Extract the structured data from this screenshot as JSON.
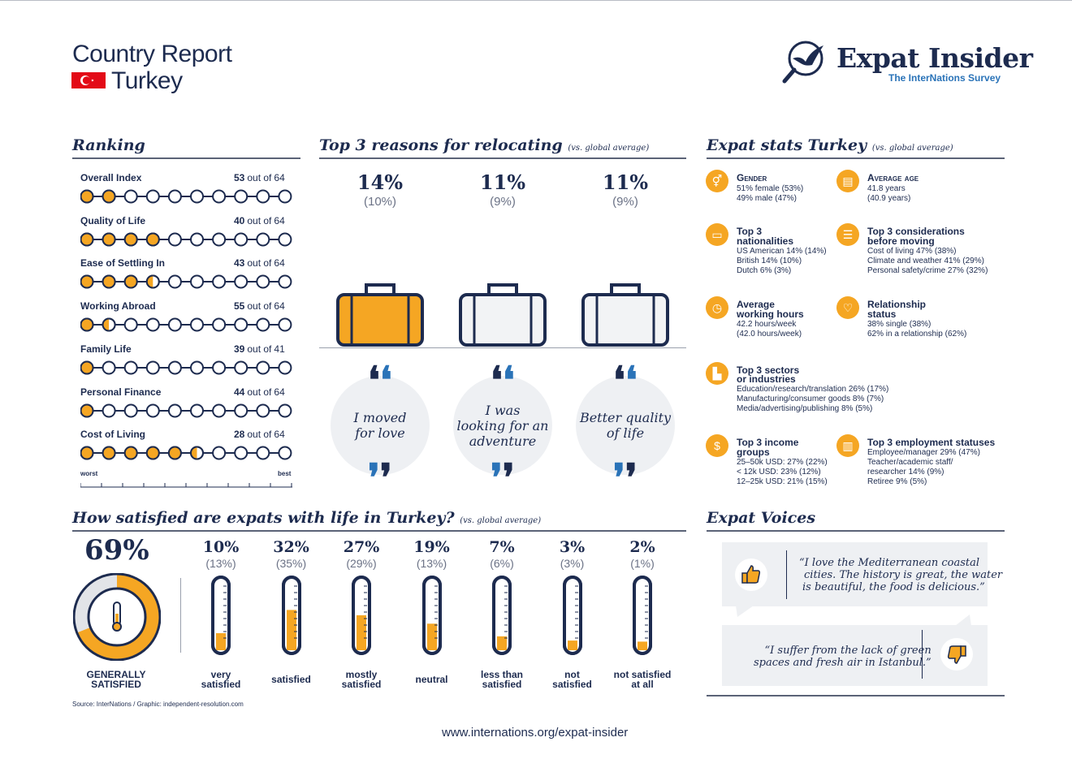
{
  "header": {
    "title": "Country Report",
    "country": "Turkey",
    "logo_name": "Expat Insider",
    "logo_sub": "The InterNations Survey"
  },
  "colors": {
    "accent": "#f5a623",
    "navy": "#1d2b4f",
    "blue": "#2a73b8",
    "flag": "#e30a17",
    "bubble": "#eef0f3"
  },
  "ranking": {
    "title": "Ranking",
    "worst": "worst",
    "best": "best",
    "out_of": "out of",
    "items": [
      {
        "label": "Overall Index",
        "rank": "53",
        "total": "64",
        "filled": 2
      },
      {
        "label": "Quality of Life",
        "rank": "40",
        "total": "64",
        "filled": 4
      },
      {
        "label": "Ease of Settling In",
        "rank": "43",
        "total": "64",
        "filled": 3.5
      },
      {
        "label": "Working Abroad",
        "rank": "55",
        "total": "64",
        "filled": 1.5
      },
      {
        "label": "Family Life",
        "rank": "39",
        "total": "41",
        "filled": 1
      },
      {
        "label": "Personal Finance",
        "rank": "44",
        "total": "64",
        "filled": 1
      },
      {
        "label": "Cost of Living",
        "rank": "28",
        "total": "64",
        "filled": 5.5
      }
    ]
  },
  "reasons": {
    "title": "Top 3 reasons for relocating",
    "note": "(vs. global average)",
    "items": [
      {
        "pct": "14%",
        "global": "(10%)",
        "text": "I moved for love",
        "line1": "I moved",
        "line2": "for love",
        "line3": "",
        "highlight": true
      },
      {
        "pct": "11%",
        "global": "(9%)",
        "text": "I was looking for an adventure",
        "line1": "I was",
        "line2": "looking for an",
        "line3": "adventure",
        "highlight": false
      },
      {
        "pct": "11%",
        "global": "(9%)",
        "text": "Better quality of life",
        "line1": "Better quality",
        "line2": "of life",
        "line3": "",
        "highlight": false
      }
    ]
  },
  "stats": {
    "title": "Expat stats Turkey",
    "note": "(vs. global average)",
    "gender": {
      "head": "Gender",
      "l1": "51% female (53%)",
      "l2": "49% male (47%)"
    },
    "age": {
      "head": "Average age",
      "l1": "41.8 years",
      "l2": "(40.9 years)"
    },
    "nationalities": {
      "head1": "Top 3",
      "head2": "nationalities",
      "l1": "US American 14% (14%)",
      "l2": "British 14% (10%)",
      "l3": "Dutch 6% (3%)"
    },
    "considerations": {
      "head1": "Top 3 considerations",
      "head2": "before moving",
      "l1": "Cost of living 47% (38%)",
      "l2": "Climate and weather 41% (29%)",
      "l3": "Personal safety/crime 27% (32%)"
    },
    "hours": {
      "head1": "Average",
      "head2": "working hours",
      "l1": "42.2 hours/week",
      "l2": "(42.0 hours/week)"
    },
    "relationship": {
      "head1": "Relationship",
      "head2": "status",
      "l1": "38% single (38%)",
      "l2": "62% in a relationship (62%)"
    },
    "sectors": {
      "head1": "Top 3 sectors",
      "head2": "or industries",
      "l1": "Education/research/translation 26% (17%)",
      "l2": "Manufacturing/consumer goods 8% (7%)",
      "l3": "Media/advertising/publishing 8% (5%)"
    },
    "income": {
      "head1": "Top 3 income",
      "head2": "groups",
      "l1": "25–50k USD: 27% (22%)",
      "l2": "< 12k USD: 23% (12%)",
      "l3": "12–25k USD: 21% (15%)"
    },
    "employment": {
      "head": "Top 3 employment statuses",
      "l1": "Employee/manager 29% (47%)",
      "l2": "Teacher/academic staff/",
      "l3": "researcher 14% (9%)",
      "l4": "Retiree 9% (5%)"
    }
  },
  "satisfaction": {
    "title": "How satisfied are expats with life in Turkey?",
    "note": "(vs. global average)",
    "overall_pct": "69%",
    "overall_value": 0.69,
    "overall_label1": "GENERALLY",
    "overall_label2": "SATISFIED",
    "items": [
      {
        "pct": "10%",
        "global": "(13%)",
        "l1": "very",
        "l2": "satisfied",
        "value": 0.1
      },
      {
        "pct": "32%",
        "global": "(35%)",
        "l1": "satisfied",
        "l2": "",
        "value": 0.32
      },
      {
        "pct": "27%",
        "global": "(29%)",
        "l1": "mostly",
        "l2": "satisfied",
        "value": 0.27
      },
      {
        "pct": "19%",
        "global": "(13%)",
        "l1": "neutral",
        "l2": "",
        "value": 0.19
      },
      {
        "pct": "7%",
        "global": "(6%)",
        "l1": "less than",
        "l2": "satisfied",
        "value": 0.07
      },
      {
        "pct": "3%",
        "global": "(3%)",
        "l1": "not",
        "l2": "satisfied",
        "value": 0.03
      },
      {
        "pct": "2%",
        "global": "(1%)",
        "l1": "not satisfied",
        "l2": "at all",
        "value": 0.02
      }
    ]
  },
  "voices": {
    "title": "Expat Voices",
    "q1": [
      "“I love the Mediterranean coastal",
      "cities. The history is great, the water",
      "is beautiful, the food is delicious.”"
    ],
    "q2": [
      "“I suffer from the lack of green",
      "spaces and fresh air in Istanbul.”"
    ]
  },
  "footer": {
    "source": "Source: InterNations / Graphic: independent-resolution.com",
    "url": "www.internations.org/expat-insider"
  }
}
